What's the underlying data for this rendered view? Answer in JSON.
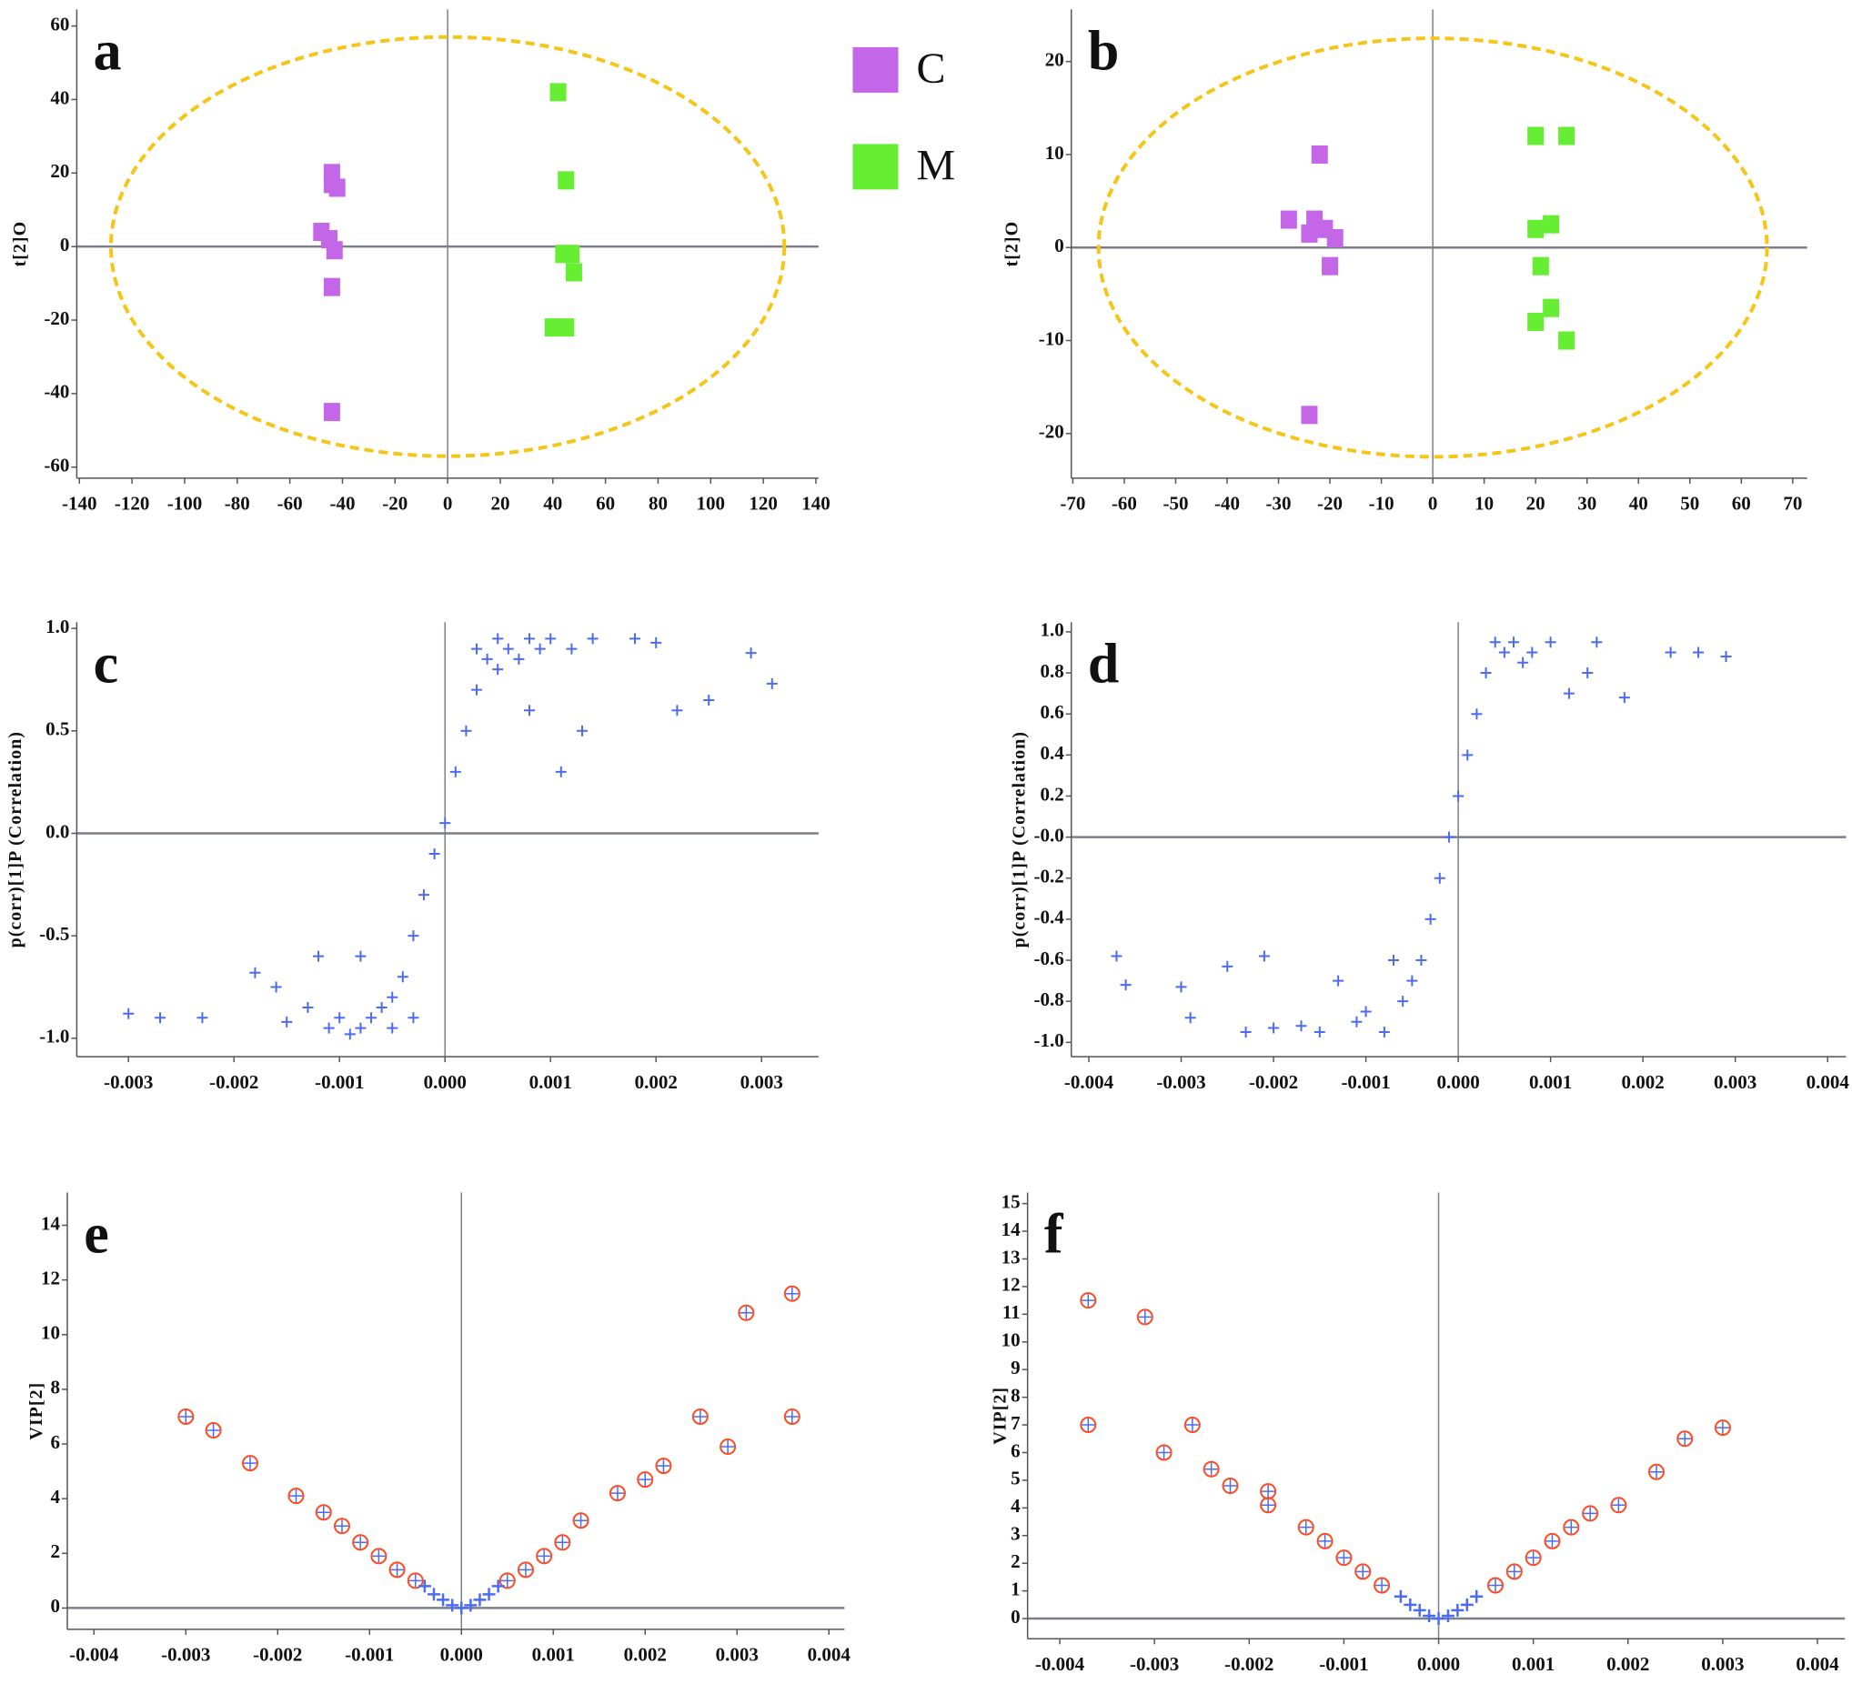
{
  "chart_data": [
    {
      "type": "scatter",
      "title": "a",
      "ylabel": "t[2]O",
      "marker": "square",
      "xlim": [
        -141,
        141
      ],
      "ylim": [
        -63,
        64.5
      ],
      "xticks": [
        -140,
        -120,
        -100,
        -80,
        -60,
        -40,
        -20,
        0,
        20,
        40,
        60,
        80,
        100,
        120,
        140
      ],
      "yticks": [
        -60,
        -40,
        -20,
        0,
        20,
        40,
        60
      ],
      "ellipse": {
        "rx": 128,
        "ry": 57,
        "color": "#f5c518"
      },
      "legend": "top-right",
      "series": [
        {
          "name": "C",
          "color": "#c466e8",
          "x": [
            -44,
            -44,
            -42,
            -48,
            -45,
            -43,
            -44,
            -44
          ],
          "values": [
            20,
            17,
            16,
            4,
            2,
            -1,
            -11,
            -45
          ]
        },
        {
          "name": "M",
          "color": "#66ee33",
          "x": [
            42,
            45,
            44,
            47,
            48,
            40,
            45
          ],
          "values": [
            42,
            18,
            -2,
            -2,
            -7,
            -22,
            -22
          ]
        }
      ]
    },
    {
      "type": "scatter",
      "title": "b",
      "ylabel": "t[2]O",
      "marker": "square",
      "xlim": [
        -70.3,
        72.8
      ],
      "ylim": [
        -24.8,
        25.6
      ],
      "xticks": [
        -70,
        -60,
        -50,
        -40,
        -30,
        -20,
        -10,
        0,
        10,
        20,
        30,
        40,
        50,
        60,
        70
      ],
      "yticks": [
        -20,
        -10,
        0,
        10,
        20
      ],
      "ellipse": {
        "rx": 65,
        "ry": 22.5,
        "color": "#f5c518"
      },
      "series": [
        {
          "color": "#c466e8",
          "x": [
            -22,
            -28,
            -23,
            -24,
            -21,
            -19,
            -20,
            -24
          ],
          "values": [
            10,
            3,
            3,
            1.5,
            2,
            1,
            -2,
            -18
          ]
        },
        {
          "color": "#66ee33",
          "x": [
            20,
            26,
            20,
            23,
            21,
            20,
            23,
            26
          ],
          "values": [
            12,
            12,
            2,
            2.5,
            -2,
            -8,
            -6.5,
            -10
          ]
        }
      ]
    },
    {
      "type": "scatter",
      "title": "c",
      "ylabel": "p(corr)[1]P (Correlation)",
      "marker": "plus",
      "xlim": [
        -0.00349,
        0.00354
      ],
      "ylim": [
        -1.09,
        1.03
      ],
      "xticks": [
        -0.003,
        -0.002,
        -0.001,
        {
          "value": 0,
          "label": "0.000"
        },
        0.001,
        0.002,
        0.003
      ],
      "yticks": [
        {
          "value": -1,
          "label": "-1.0"
        },
        -0.5,
        {
          "value": 0,
          "label": "0.0"
        },
        0.5,
        {
          "value": 1,
          "label": "1.0"
        }
      ],
      "series": [
        {
          "color": "#4d6bf0",
          "x": [
            -0.003,
            -0.0027,
            -0.0023,
            -0.0018,
            -0.0016,
            -0.0015,
            -0.0013,
            -0.0011,
            -0.001,
            -0.0009,
            -0.0008,
            -0.0007,
            -0.0006,
            -0.0005,
            -0.0004,
            -0.0003,
            -0.0002,
            -0.0001,
            0,
            0.0001,
            0.0002,
            0.0003,
            0.0004,
            0.0005,
            0.0006,
            0.0007,
            0.0008,
            0.0009,
            0.001,
            0.0012,
            0.0014,
            0.0018,
            0.002,
            0.0022,
            0.0025,
            0.0029,
            0.0031,
            -0.0012,
            -0.0008,
            -0.0005,
            -0.0003,
            0.0003,
            0.0005,
            0.0008,
            0.0011,
            0.0013
          ],
          "values": [
            -0.88,
            -0.9,
            -0.9,
            -0.68,
            -0.75,
            -0.92,
            -0.85,
            -0.95,
            -0.9,
            -0.98,
            -0.95,
            -0.9,
            -0.85,
            -0.8,
            -0.7,
            -0.5,
            -0.3,
            -0.1,
            0.05,
            0.3,
            0.5,
            0.7,
            0.85,
            0.95,
            0.9,
            0.85,
            0.95,
            0.9,
            0.95,
            0.9,
            0.95,
            0.95,
            0.93,
            0.6,
            0.65,
            0.88,
            0.73,
            -0.6,
            -0.6,
            -0.95,
            -0.9,
            0.9,
            0.8,
            0.6,
            0.3,
            0.5
          ]
        }
      ]
    },
    {
      "type": "scatter",
      "title": "d",
      "ylabel": "p(corr)[1]P (Correlation)",
      "marker": "plus",
      "xlim": [
        -0.00419,
        0.0042
      ],
      "ylim": [
        -1.07,
        1.047
      ],
      "xticks": [
        -0.004,
        -0.003,
        -0.002,
        -0.001,
        {
          "value": 0,
          "label": "0.000"
        },
        0.001,
        0.002,
        0.003,
        0.004
      ],
      "yticks": [
        {
          "value": -1,
          "label": "-1.0"
        },
        -0.8,
        -0.6,
        -0.4,
        -0.2,
        {
          "value": 0,
          "label": "-0.0"
        },
        0.2,
        0.4,
        0.6,
        0.8,
        {
          "value": 1,
          "label": "1.0"
        }
      ],
      "series": [
        {
          "color": "#4d6bf0",
          "x": [
            -0.0037,
            -0.0036,
            -0.003,
            -0.0029,
            -0.0025,
            -0.0023,
            -0.0021,
            -0.002,
            -0.0017,
            -0.0015,
            -0.0013,
            -0.0011,
            -0.001,
            -0.0008,
            -0.0007,
            -0.0006,
            -0.0005,
            -0.0004,
            -0.0003,
            -0.0002,
            -0.0001,
            0,
            0.0001,
            0.0002,
            0.0003,
            0.0004,
            0.0005,
            0.0006,
            0.0007,
            0.0008,
            0.001,
            0.0012,
            0.0014,
            0.0015,
            0.0018,
            0.0023,
            0.0026,
            0.0029
          ],
          "values": [
            -0.58,
            -0.72,
            -0.73,
            -0.88,
            -0.63,
            -0.95,
            -0.58,
            -0.93,
            -0.92,
            -0.95,
            -0.7,
            -0.9,
            -0.85,
            -0.95,
            -0.6,
            -0.8,
            -0.7,
            -0.6,
            -0.4,
            -0.2,
            0,
            0.2,
            0.4,
            0.6,
            0.8,
            0.95,
            0.9,
            0.95,
            0.85,
            0.9,
            0.95,
            0.7,
            0.8,
            0.95,
            0.68,
            0.9,
            0.9,
            0.88
          ]
        }
      ]
    },
    {
      "type": "scatter",
      "title": "e",
      "ylabel": "VIP[2]",
      "marker": "circle-plus",
      "xlim": [
        -0.00429,
        0.00417
      ],
      "ylim": [
        -0.78,
        15.2
      ],
      "xticks": [
        -0.004,
        -0.003,
        -0.002,
        -0.001,
        {
          "value": 0,
          "label": "0.000"
        },
        0.001,
        0.002,
        0.003,
        0.004
      ],
      "yticks": [
        0,
        2,
        4,
        6,
        8,
        10,
        12,
        14
      ],
      "series": [
        {
          "color": "#ff4a22",
          "x": [
            -0.003,
            -0.0027,
            -0.0023,
            -0.0018,
            -0.0015,
            -0.0013,
            -0.0011,
            -0.0009,
            -0.0007,
            -0.0005,
            0.0005,
            0.0007,
            0.0009,
            0.0011,
            0.0013,
            0.0017,
            0.002,
            0.0022,
            0.0026,
            0.0029,
            0.0031,
            0.0036,
            0.0036
          ],
          "values": [
            7,
            6.5,
            5.3,
            4.1,
            3.5,
            3,
            2.4,
            1.9,
            1.4,
            1,
            1,
            1.4,
            1.9,
            2.4,
            3.2,
            4.2,
            4.7,
            5.2,
            7,
            5.9,
            10.8,
            11.5,
            7
          ]
        },
        {
          "color": "#4d6bf0",
          "x": [
            -0.0004,
            -0.0003,
            -0.0002,
            -0.0001,
            0,
            0.0001,
            0.0002,
            0.0003,
            0.0004
          ],
          "values": [
            0.8,
            0.5,
            0.3,
            0.1,
            0,
            0.1,
            0.3,
            0.5,
            0.8
          ]
        }
      ]
    },
    {
      "type": "scatter",
      "title": "f",
      "ylabel": "VIP[2]",
      "marker": "circle-plus",
      "xlim": [
        -0.00434,
        0.00429
      ],
      "ylim": [
        -0.73,
        15.4
      ],
      "xticks": [
        -0.004,
        -0.003,
        -0.002,
        -0.001,
        {
          "value": 0,
          "label": "0.000"
        },
        0.001,
        0.002,
        0.003,
        0.004
      ],
      "yticks": [
        0,
        1,
        2,
        3,
        4,
        5,
        6,
        7,
        8,
        9,
        10,
        11,
        12,
        13,
        14,
        15
      ],
      "series": [
        {
          "color": "#ff4a22",
          "x": [
            -0.0037,
            -0.0037,
            -0.0031,
            -0.0029,
            -0.0026,
            -0.0024,
            -0.0022,
            -0.0018,
            -0.0018,
            -0.0014,
            -0.0012,
            -0.001,
            -0.0008,
            -0.0006,
            0.0006,
            0.0008,
            0.001,
            0.0012,
            0.0014,
            0.0016,
            0.0019,
            0.0023,
            0.0026,
            0.003
          ],
          "values": [
            11.5,
            7,
            10.9,
            6,
            7,
            5.4,
            4.8,
            4.1,
            4.6,
            3.3,
            2.8,
            2.2,
            1.7,
            1.2,
            1.2,
            1.7,
            2.2,
            2.8,
            3.3,
            3.8,
            4.1,
            5.3,
            6.5,
            6.9
          ]
        },
        {
          "color": "#4d6bf0",
          "x": [
            -0.0004,
            -0.0003,
            -0.0002,
            -0.0001,
            0,
            0.0001,
            0.0002,
            0.0003,
            0.0004
          ],
          "values": [
            0.8,
            0.5,
            0.3,
            0.1,
            0,
            0.1,
            0.3,
            0.5,
            0.8
          ]
        }
      ]
    }
  ]
}
